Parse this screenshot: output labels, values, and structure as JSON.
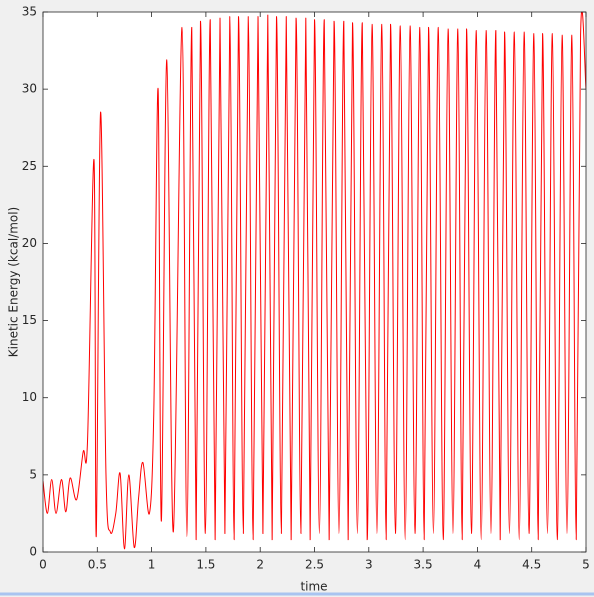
{
  "chart_data": {
    "type": "line",
    "x_label": "time",
    "y_label": "Kinetic Energy (kcal/mol)",
    "x": [
      0,
      0.04,
      0.08,
      0.12,
      0.17,
      0.21,
      0.25,
      0.31,
      0.37,
      0.41,
      0.47,
      0.49,
      0.53,
      0.58,
      0.62,
      0.67,
      0.71,
      0.75,
      0.79,
      0.84,
      0.88,
      0.92,
      0.98,
      1.02,
      1.06,
      1.09,
      1.14,
      1.2,
      1.28,
      1.325,
      1.37,
      1.41,
      1.45,
      1.495,
      1.54,
      1.585,
      1.63,
      1.675,
      1.72,
      1.76,
      1.8,
      1.845,
      1.89,
      1.935,
      1.98,
      2.025,
      2.07,
      2.11,
      2.15,
      2.195,
      2.24,
      2.285,
      2.33,
      2.375,
      2.42,
      2.46,
      2.5,
      2.545,
      2.59,
      2.635,
      2.68,
      2.725,
      2.77,
      2.81,
      2.85,
      2.895,
      2.94,
      2.985,
      3.03,
      3.075,
      3.12,
      3.16,
      3.2,
      3.245,
      3.29,
      3.335,
      3.38,
      3.425,
      3.47,
      3.51,
      3.55,
      3.595,
      3.64,
      3.685,
      3.73,
      3.775,
      3.82,
      3.86,
      3.9,
      3.945,
      3.99,
      4.035,
      4.08,
      4.125,
      4.17,
      4.21,
      4.25,
      4.295,
      4.34,
      4.385,
      4.43,
      4.475,
      4.52,
      4.56,
      4.6,
      4.645,
      4.69,
      4.735,
      4.78,
      4.825,
      4.87,
      4.91,
      4.95,
      5
    ],
    "series": [
      {
        "name": "Kinetic Energy",
        "color": "#ff0000",
        "values": [
          4.6,
          2.5,
          4.7,
          2.5,
          4.7,
          2.6,
          4.8,
          3.4,
          6.5,
          7.2,
          25.4,
          1.0,
          28.5,
          5,
          1.3,
          2.5,
          5.1,
          0.2,
          5.0,
          0.3,
          3.5,
          5.8,
          2.5,
          9,
          30,
          2.0,
          31.9,
          1.3,
          34.0,
          1.0,
          34.0,
          0.8,
          34.4,
          1.2,
          34.5,
          0.8,
          34.6,
          1.2,
          34.7,
          0.8,
          34.7,
          1.2,
          34.7,
          0.8,
          34.7,
          1.2,
          34.8,
          0.8,
          34.7,
          1.2,
          34.7,
          0.8,
          34.6,
          1.2,
          34.6,
          0.8,
          34.5,
          1.2,
          34.5,
          0.8,
          34.4,
          1.2,
          34.4,
          0.8,
          34.3,
          1.2,
          34.3,
          0.8,
          34.2,
          1.2,
          34.2,
          0.8,
          34.2,
          1.2,
          34.1,
          0.8,
          34.1,
          1.2,
          34.0,
          0.8,
          34.0,
          1.2,
          34.0,
          0.8,
          33.9,
          1.2,
          33.9,
          0.8,
          33.9,
          1.2,
          33.8,
          0.8,
          33.8,
          1.2,
          33.8,
          0.8,
          33.7,
          1.2,
          33.7,
          0.8,
          33.7,
          1.2,
          33.6,
          0.8,
          33.6,
          1.2,
          33.6,
          0.8,
          33.5,
          1.2,
          33.5,
          0.8,
          33.5,
          30
        ]
      }
    ],
    "xlim": [
      0,
      5
    ],
    "xticks": [
      0,
      0.5,
      1,
      1.5,
      2,
      2.5,
      3,
      3.5,
      4,
      4.5,
      5
    ],
    "ylim": [
      0,
      35
    ],
    "yticks": [
      0,
      5,
      10,
      15,
      20,
      25,
      30,
      35
    ],
    "grid": false
  }
}
